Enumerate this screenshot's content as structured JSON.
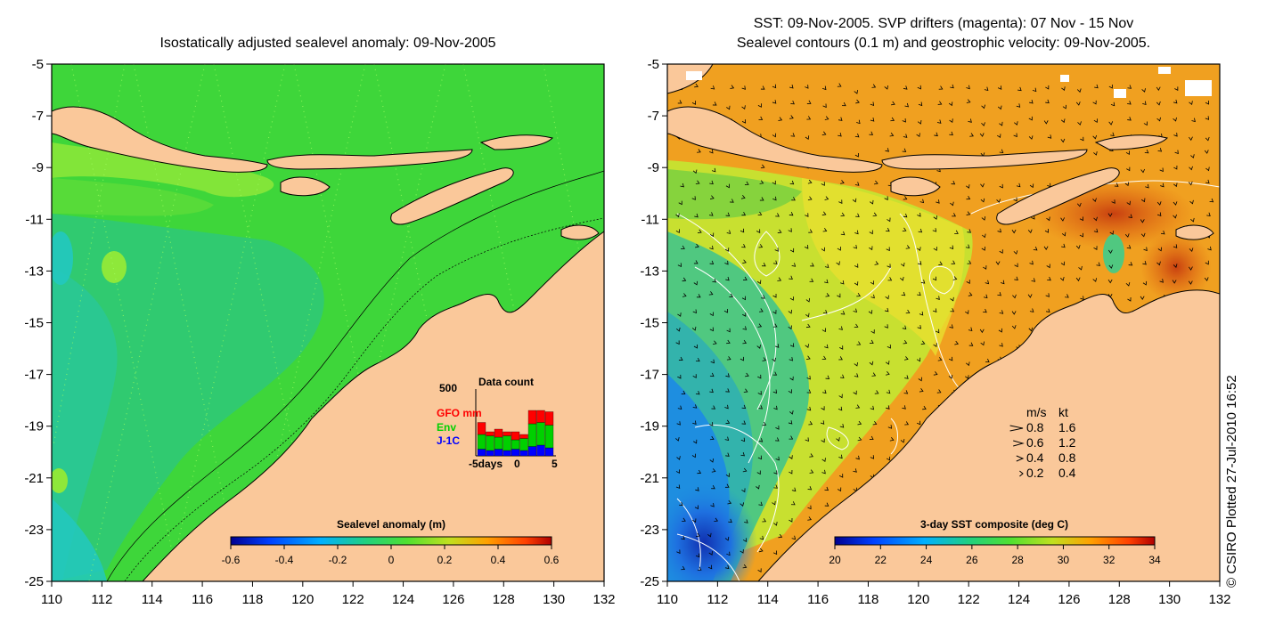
{
  "colors": {
    "land": "#fac89a",
    "coast": "#000000",
    "sla_base": "#3ed63a",
    "sla_high": "#8ee83a",
    "sla_low": "#2ec87a",
    "sla_lowest": "#22c8c0",
    "sst_warm": "#f09a20",
    "sst_hot": "#e05a10",
    "sst_mid": "#b8e030",
    "sst_cool": "#40c070",
    "sst_cold": "#1e8ee0",
    "sst_coldest": "#1030b0",
    "gfo": "#ff0000",
    "env": "#00d000",
    "j1c": "#0000ff",
    "arrow": "#000000",
    "contour": "#ffffff"
  },
  "left_map": {
    "title": "Isostatically adjusted sealevel anomaly: 09-Nov-2005",
    "colorbar": {
      "label": "Sealevel anomaly (m)",
      "ticks": [
        "-0.6",
        "-0.4",
        "-0.2",
        "0",
        "0.2",
        "0.4",
        "0.6"
      ],
      "range": [
        -0.6,
        0.6
      ]
    },
    "data_count": {
      "title": "Data count",
      "ymax_label": "500",
      "ymax": 500,
      "series": [
        {
          "name": "GFO mm",
          "color": "#ff0000"
        },
        {
          "name": "Env",
          "color": "#00d000"
        },
        {
          "name": "J-1C",
          "color": "#0000ff"
        }
      ],
      "x_ticks": [
        "-5days",
        "0",
        "5"
      ],
      "gfo": [
        90,
        30,
        60,
        30,
        60,
        30,
        100,
        90,
        100
      ],
      "env": [
        110,
        110,
        90,
        110,
        70,
        90,
        170,
        170,
        170
      ],
      "j1c": [
        50,
        40,
        50,
        40,
        50,
        40,
        70,
        80,
        60
      ]
    }
  },
  "right_map": {
    "title_line1": "SST: 09-Nov-2005. SVP drifters (magenta): 07 Nov - 15 Nov",
    "title_line2": "Sealevel contours (0.1 m) and geostrophic velocity: 09-Nov-2005.",
    "colorbar": {
      "label": "3-day SST composite (deg C)",
      "ticks": [
        "20",
        "22",
        "24",
        "26",
        "28",
        "30",
        "32",
        "34"
      ],
      "range": [
        20,
        34
      ]
    },
    "velocity_legend": {
      "header_ms": "m/s",
      "header_kt": "kt",
      "rows": [
        {
          "ms": "0.8",
          "kt": "1.6",
          "value": 0.8
        },
        {
          "ms": "0.6",
          "kt": "1.2",
          "value": 0.6
        },
        {
          "ms": "0.4",
          "kt": "0.8",
          "value": 0.4
        },
        {
          "ms": "0.2",
          "kt": "0.4",
          "value": 0.2
        }
      ]
    }
  },
  "axes": {
    "lat_ticks": [
      "-5",
      "-7",
      "-9",
      "-11",
      "-13",
      "-15",
      "-17",
      "-19",
      "-21",
      "-23",
      "-25"
    ],
    "lon_ticks": [
      "110",
      "112",
      "114",
      "116",
      "118",
      "120",
      "122",
      "124",
      "126",
      "128",
      "130",
      "132"
    ],
    "lat_range": [
      -25,
      -5
    ],
    "lon_range": [
      110,
      132
    ]
  },
  "credit": "© CSIRO Plotted 27-Jul-2010 16:52"
}
